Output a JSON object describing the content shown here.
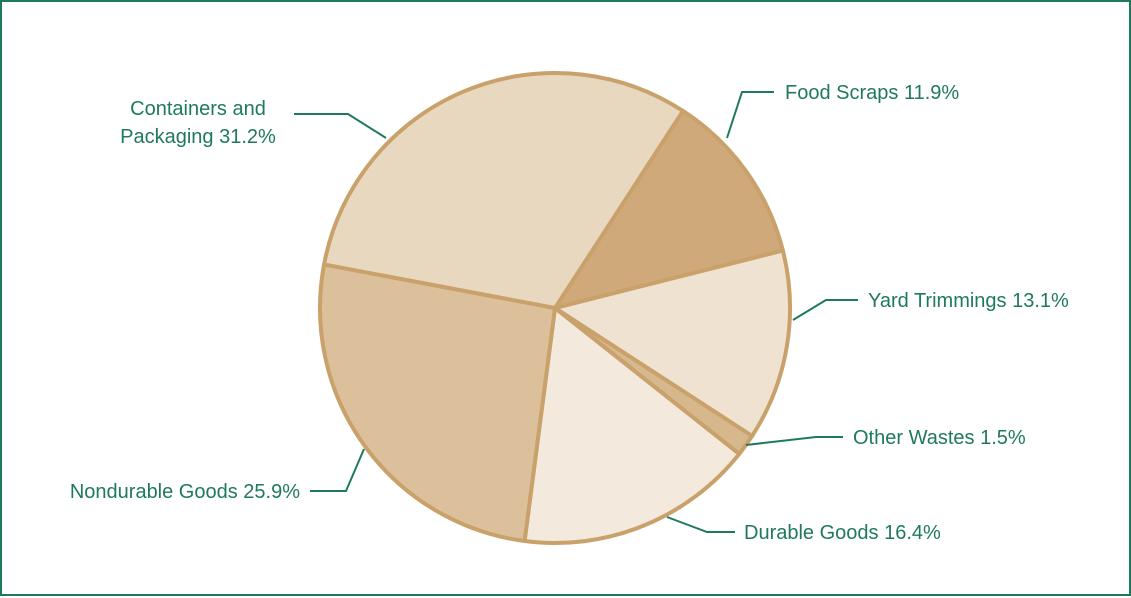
{
  "chart_data": {
    "type": "pie",
    "title": "",
    "slices": [
      {
        "lines": [
          "Food Scraps 11.9%"
        ],
        "value": 11.9,
        "color": "#cfa979"
      },
      {
        "lines": [
          "Yard Trimmings 13.1%"
        ],
        "value": 13.1,
        "color": "#efe2d0"
      },
      {
        "lines": [
          "Other Wastes 1.5%"
        ],
        "value": 1.5,
        "color": "#d7b78c"
      },
      {
        "lines": [
          "Durable Goods 16.4%"
        ],
        "value": 16.4,
        "color": "#f3e9dc"
      },
      {
        "lines": [
          "Nondurable Goods 25.9%"
        ],
        "value": 25.9,
        "color": "#dbc09b"
      },
      {
        "lines": [
          "Containers and",
          "Packaging 31.2%"
        ],
        "value": 31.2,
        "color": "#e9d8c0"
      }
    ],
    "colors": {
      "outline": "#c9a16b",
      "label_text": "#1f7a5c",
      "leader_line": "#1f7a5c",
      "frame_border": "#1f7a5c"
    }
  }
}
